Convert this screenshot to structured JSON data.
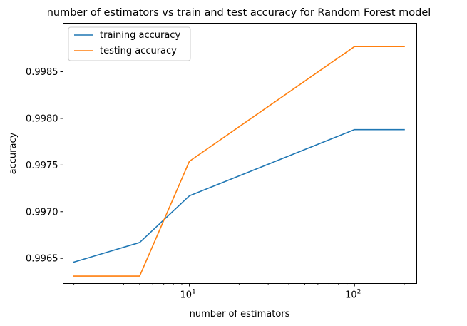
{
  "chart_data": {
    "type": "line",
    "title": "number of estimators vs train and test accuracy for Random Forest model",
    "xlabel": "number of estimators",
    "ylabel": "accuracy",
    "xscale": "log",
    "xlim": [
      1.72,
      238
    ],
    "ylim": [
      0.99623,
      0.99902
    ],
    "x": [
      2,
      5,
      10,
      100,
      200
    ],
    "x_ticks": [
      {
        "value": 10,
        "base": "10",
        "exp": "1"
      },
      {
        "value": 100,
        "base": "10",
        "exp": "2"
      }
    ],
    "y_ticks": [
      {
        "value": 0.9965,
        "label": "0.9965"
      },
      {
        "value": 0.997,
        "label": "0.9970"
      },
      {
        "value": 0.9975,
        "label": "0.9975"
      },
      {
        "value": 0.998,
        "label": "0.9980"
      },
      {
        "value": 0.9985,
        "label": "0.9985"
      }
    ],
    "series": [
      {
        "name": "training accuracy",
        "color": "#1f77b4",
        "values": [
          0.99646,
          0.99667,
          0.99717,
          0.99788,
          0.99788
        ]
      },
      {
        "name": "testing accuracy",
        "color": "#ff7f0e",
        "values": [
          0.99631,
          0.99631,
          0.99754,
          0.99877,
          0.99877
        ]
      }
    ],
    "grid": false,
    "legend": "top-left"
  }
}
